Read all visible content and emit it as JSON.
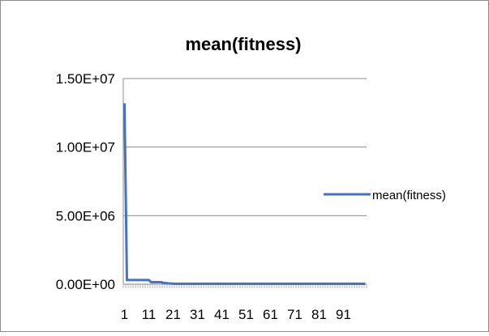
{
  "chart_data": {
    "type": "line",
    "title": "mean(fitness)",
    "xlabel": "",
    "ylabel": "",
    "ylim": [
      0,
      15000000
    ],
    "yticks": [
      "0.00E+00",
      "5.00E+06",
      "1.00E+07",
      "1.50E+07"
    ],
    "ytick_values": [
      0,
      5000000,
      10000000,
      15000000
    ],
    "xtick_labels": [
      "1",
      "11",
      "21",
      "31",
      "41",
      "51",
      "61",
      "71",
      "81",
      "91"
    ],
    "x_count": 100,
    "grid": "horizontal",
    "legend": "right",
    "series": [
      {
        "name": "mean(fitness)",
        "color": "#4472C4",
        "values": [
          13200000,
          300000,
          300000,
          300000,
          300000,
          300000,
          300000,
          300000,
          300000,
          300000,
          300000,
          150000,
          150000,
          150000,
          150000,
          150000,
          100000,
          80000,
          60000,
          50000,
          40000,
          30000,
          30000,
          30000,
          30000,
          30000,
          30000,
          30000,
          30000,
          30000,
          30000,
          30000,
          30000,
          30000,
          30000,
          30000,
          30000,
          30000,
          30000,
          30000,
          30000,
          30000,
          30000,
          30000,
          30000,
          30000,
          30000,
          30000,
          30000,
          30000,
          30000,
          30000,
          30000,
          30000,
          30000,
          30000,
          30000,
          30000,
          30000,
          30000,
          30000,
          30000,
          30000,
          30000,
          30000,
          30000,
          30000,
          30000,
          30000,
          30000,
          30000,
          30000,
          30000,
          30000,
          30000,
          30000,
          30000,
          30000,
          30000,
          30000,
          30000,
          30000,
          30000,
          30000,
          30000,
          30000,
          30000,
          30000,
          30000,
          30000,
          30000,
          30000,
          30000,
          30000,
          30000,
          30000,
          30000,
          30000,
          30000,
          30000
        ]
      }
    ]
  }
}
